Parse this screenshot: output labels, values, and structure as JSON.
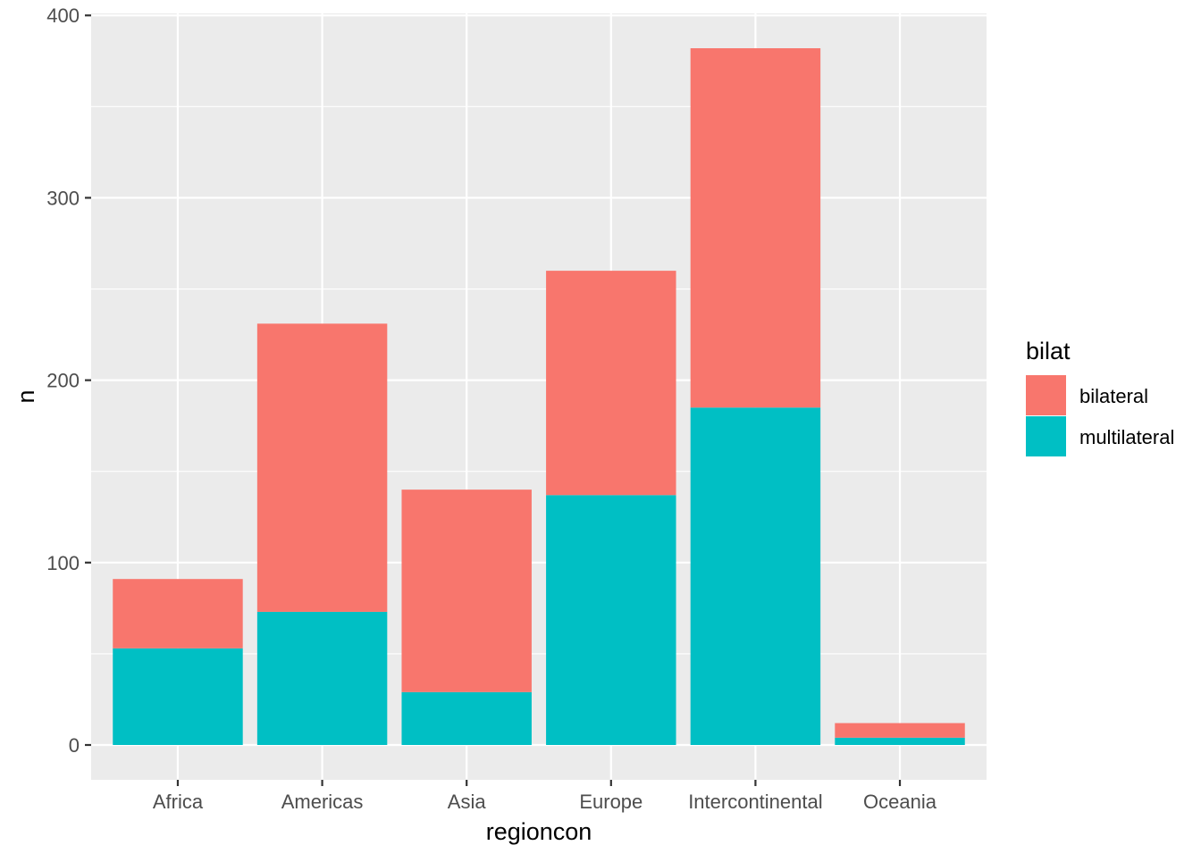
{
  "chart_data": {
    "type": "bar",
    "stacked": true,
    "categories": [
      "Africa",
      "Americas",
      "Asia",
      "Europe",
      "Intercontinental",
      "Oceania"
    ],
    "series": [
      {
        "name": "bilateral",
        "values": [
          38,
          158,
          111,
          123,
          197,
          8
        ],
        "color": "#F8766D"
      },
      {
        "name": "multilateral",
        "values": [
          53,
          73,
          29,
          137,
          185,
          4
        ],
        "color": "#00BFC4"
      }
    ],
    "totals": [
      91,
      231,
      140,
      260,
      382,
      12
    ],
    "xlabel": "regioncon",
    "ylabel": "n",
    "ylim": [
      -19.1,
      401.1
    ],
    "yticks": [
      0,
      100,
      200,
      300,
      400
    ],
    "grid": true,
    "panel_background": "#EBEBEB",
    "grid_color": "#FFFFFF",
    "legend": {
      "title": "bilat",
      "position": "right"
    }
  }
}
